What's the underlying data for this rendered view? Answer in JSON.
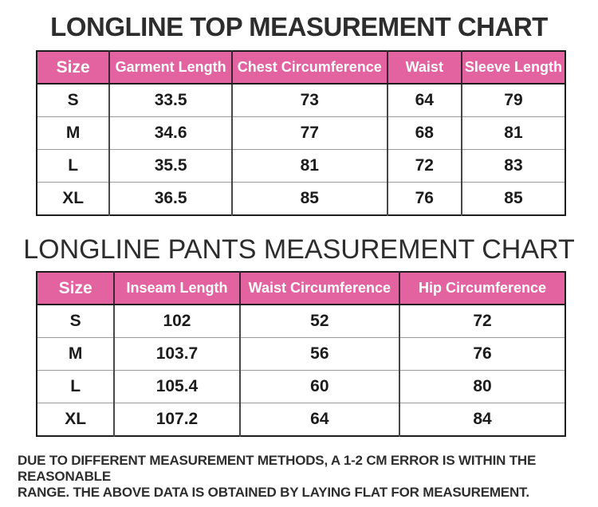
{
  "colors": {
    "header_pink": "#e2639f",
    "header_text": "#ffffff",
    "title_text": "#2d2d2d",
    "body_text": "#1c1c1c"
  },
  "chart_data": [
    {
      "type": "table",
      "title": "LONGLINE TOP MEASUREMENT CHART",
      "columns": [
        "Size",
        "Garment Length",
        "Chest Circumference",
        "Waist",
        "Sleeve Length"
      ],
      "rows": [
        [
          "S",
          33.5,
          73,
          64,
          79
        ],
        [
          "M",
          34.6,
          77,
          68,
          81
        ],
        [
          "L",
          35.5,
          81,
          72,
          83
        ],
        [
          "XL",
          36.5,
          85,
          76,
          85
        ]
      ]
    },
    {
      "type": "table",
      "title": "LONGLINE PANTS MEASUREMENT CHART",
      "columns": [
        "Size",
        "Inseam Length",
        "Waist Circumference",
        "Hip Circumference"
      ],
      "rows": [
        [
          "S",
          102,
          52,
          72
        ],
        [
          "M",
          103.7,
          56,
          76
        ],
        [
          "L",
          105.4,
          60,
          80
        ],
        [
          "XL",
          107.2,
          64,
          84
        ]
      ]
    }
  ],
  "footer": {
    "lines": [
      "DUE TO DIFFERENT MEASUREMENT METHODS, A 1-2 CM ERROR IS WITHIN THE REASONABLE",
      "RANGE. THE ABOVE DATA IS OBTAINED BY LAYING FLAT FOR MEASUREMENT."
    ]
  }
}
